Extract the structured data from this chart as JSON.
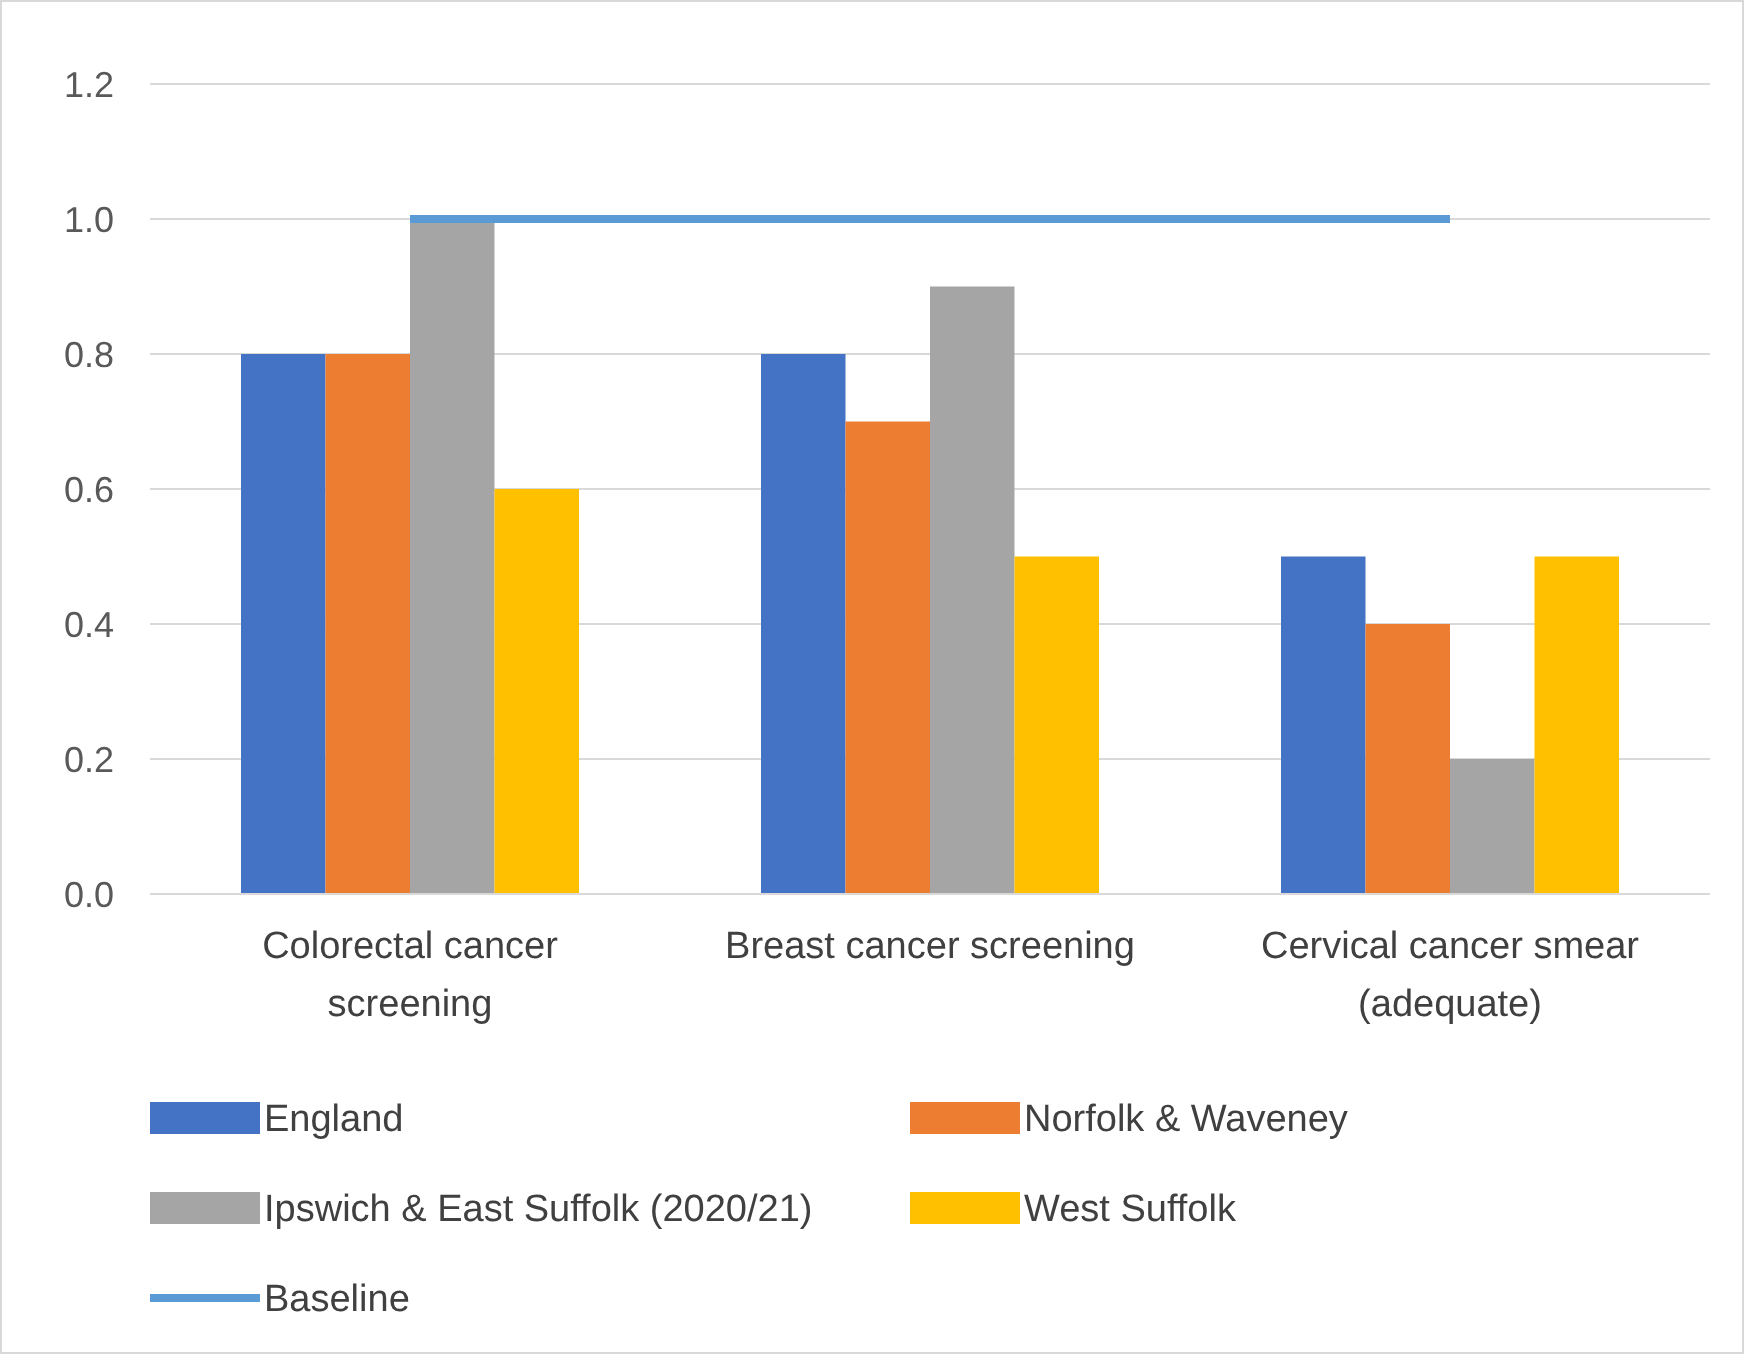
{
  "chart_data": {
    "type": "bar",
    "categories": [
      "Colorectal cancer screening",
      "Breast cancer screening",
      "Cervical cancer smear (adequate)"
    ],
    "series": [
      {
        "name": "England",
        "color": "#4472c4",
        "values": [
          0.8,
          0.8,
          0.5
        ]
      },
      {
        "name": "Norfolk & Waveney",
        "color": "#ed7d31",
        "values": [
          0.8,
          0.7,
          0.4
        ]
      },
      {
        "name": "Ipswich & East Suffolk (2020/21)",
        "color": "#a5a5a5",
        "values": [
          1.0,
          0.9,
          0.2
        ]
      },
      {
        "name": "West Suffolk",
        "color": "#ffc000",
        "values": [
          0.6,
          0.5,
          0.5
        ]
      },
      {
        "name": "Baseline",
        "type": "line",
        "color": "#5b9bd5",
        "values": [
          1.0,
          1.0,
          1.0
        ]
      }
    ],
    "ylim": [
      0,
      1.2
    ],
    "yticks": [
      {
        "value": 0,
        "label": "0.0"
      },
      {
        "value": 0.2,
        "label": "0.2"
      },
      {
        "value": 0.4,
        "label": "0.4"
      },
      {
        "value": 0.6,
        "label": "0.6"
      },
      {
        "value": 0.8,
        "label": "0.8"
      },
      {
        "value": 1,
        "label": "1.0"
      },
      {
        "value": 1.2,
        "label": "1.2"
      }
    ],
    "grid": "y",
    "legend": "bottom"
  }
}
